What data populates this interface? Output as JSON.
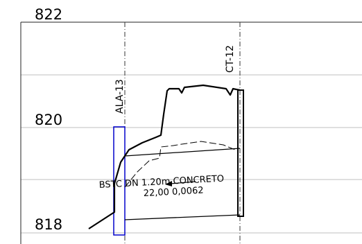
{
  "elevations": {
    "top": "822",
    "mid": "820",
    "bottom": "818"
  },
  "stations": {
    "left": "ALA-13",
    "right": "CT-12"
  },
  "pipe": {
    "line1": "BSTC  DN  1.20m  CONCRETO",
    "line2": "22,00  0,0062"
  },
  "colors": {
    "structure_outline": "#0000cc",
    "grid": "#bfbfbf",
    "ink": "#000000"
  }
}
